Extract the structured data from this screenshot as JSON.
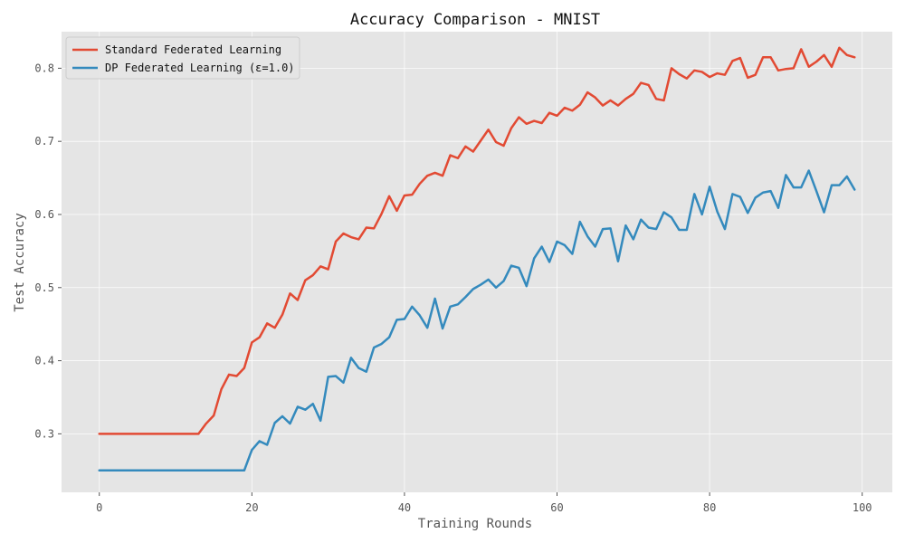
{
  "chart_data": {
    "type": "line",
    "title": "Accuracy Comparison - MNIST",
    "xlabel": "Training Rounds",
    "ylabel": "Test Accuracy",
    "xlim": [
      -4.95,
      103.95
    ],
    "ylim": [
      0.22,
      0.85
    ],
    "xticks": [
      0,
      20,
      40,
      60,
      80,
      100
    ],
    "xtick_labels": [
      "0",
      "20",
      "40",
      "60",
      "80",
      "100"
    ],
    "yticks": [
      0.3,
      0.4,
      0.5,
      0.6,
      0.7,
      0.8
    ],
    "ytick_labels": [
      "0.3",
      "0.4",
      "0.5",
      "0.6",
      "0.7",
      "0.8"
    ],
    "grid": true,
    "legend_position": "top-left",
    "background": "#e5e5e5",
    "series": [
      {
        "name": "Standard Federated Learning",
        "color": "#E24A33",
        "values": [
          0.3,
          0.3,
          0.3,
          0.3,
          0.3,
          0.3,
          0.3,
          0.3,
          0.3,
          0.3,
          0.3,
          0.3,
          0.3,
          0.3,
          0.314,
          0.325,
          0.361,
          0.381,
          0.379,
          0.39,
          0.425,
          0.432,
          0.451,
          0.445,
          0.463,
          0.492,
          0.483,
          0.51,
          0.517,
          0.529,
          0.525,
          0.563,
          0.574,
          0.569,
          0.566,
          0.582,
          0.581,
          0.601,
          0.625,
          0.605,
          0.626,
          0.627,
          0.642,
          0.653,
          0.657,
          0.653,
          0.681,
          0.677,
          0.693,
          0.686,
          0.701,
          0.716,
          0.699,
          0.694,
          0.718,
          0.733,
          0.724,
          0.728,
          0.725,
          0.739,
          0.735,
          0.746,
          0.742,
          0.75,
          0.767,
          0.76,
          0.749,
          0.756,
          0.749,
          0.758,
          0.765,
          0.78,
          0.777,
          0.758,
          0.756,
          0.8,
          0.792,
          0.786,
          0.797,
          0.795,
          0.788,
          0.793,
          0.791,
          0.81,
          0.814,
          0.787,
          0.791,
          0.815,
          0.815,
          0.797,
          0.799,
          0.8,
          0.826,
          0.802,
          0.809,
          0.818,
          0.802,
          0.828,
          0.818,
          0.815
        ]
      },
      {
        "name": "DP Federated Learning (ε=1.0)",
        "color": "#348ABD",
        "values": [
          0.25,
          0.25,
          0.25,
          0.25,
          0.25,
          0.25,
          0.25,
          0.25,
          0.25,
          0.25,
          0.25,
          0.25,
          0.25,
          0.25,
          0.25,
          0.25,
          0.25,
          0.25,
          0.25,
          0.25,
          0.278,
          0.29,
          0.285,
          0.315,
          0.324,
          0.314,
          0.337,
          0.333,
          0.341,
          0.318,
          0.378,
          0.379,
          0.37,
          0.404,
          0.39,
          0.385,
          0.418,
          0.423,
          0.432,
          0.456,
          0.457,
          0.474,
          0.462,
          0.445,
          0.485,
          0.444,
          0.474,
          0.477,
          0.487,
          0.498,
          0.504,
          0.511,
          0.5,
          0.509,
          0.53,
          0.527,
          0.502,
          0.54,
          0.556,
          0.535,
          0.563,
          0.558,
          0.546,
          0.59,
          0.57,
          0.556,
          0.58,
          0.581,
          0.536,
          0.585,
          0.566,
          0.593,
          0.582,
          0.58,
          0.603,
          0.596,
          0.579,
          0.579,
          0.628,
          0.6,
          0.638,
          0.604,
          0.58,
          0.628,
          0.624,
          0.602,
          0.623,
          0.63,
          0.632,
          0.609,
          0.654,
          0.637,
          0.637,
          0.66,
          0.632,
          0.603,
          0.64,
          0.64,
          0.652,
          0.634
        ]
      }
    ]
  }
}
